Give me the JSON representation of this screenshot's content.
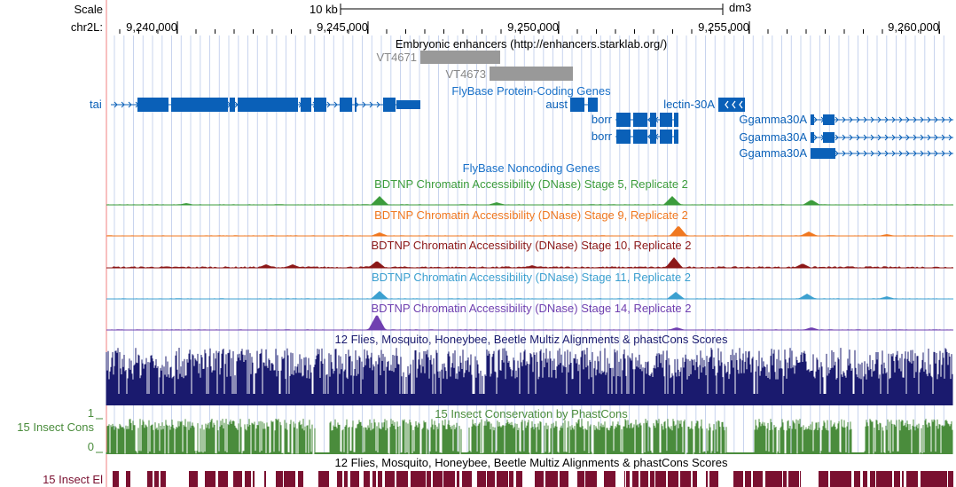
{
  "ruler": {
    "scale_label": "Scale",
    "scale_bar_label": "10 kb",
    "assembly": "dm3",
    "chrom_label": "chr2L:",
    "ticks": [
      "9,240,000",
      "9,245,000",
      "9,250,000",
      "9,255,000",
      "9,260,000"
    ]
  },
  "tracks": {
    "enhancers": {
      "title": "Embryonic enhancers (http://enhancers.starklab.org/)",
      "items": [
        "VT4671",
        "VT4673"
      ]
    },
    "coding": {
      "title": "FlyBase Protein-Coding Genes",
      "genes": [
        "tai",
        "aust",
        "lectin-30A",
        "borr",
        "borr",
        "Ggamma30A",
        "Ggamma30A",
        "Ggamma30A"
      ]
    },
    "noncoding": {
      "title": "FlyBase Noncoding Genes"
    },
    "dnase": [
      {
        "title": "BDTNP Chromatin Accessibility (DNase) Stage 5, Replicate 2",
        "color": "#3c9c3c"
      },
      {
        "title": "BDTNP Chromatin Accessibility (DNase) Stage 9, Replicate 2",
        "color": "#f07820"
      },
      {
        "title": "BDTNP Chromatin Accessibility (DNase) Stage 10, Replicate 2",
        "color": "#8c1818"
      },
      {
        "title": "BDTNP Chromatin Accessibility (DNase) Stage 11, Replicate 2",
        "color": "#3ca0d0"
      },
      {
        "title": "BDTNP Chromatin Accessibility (DNase) Stage 14, Replicate 2",
        "color": "#7040b0"
      }
    ],
    "multiz": {
      "title": "12 Flies, Mosquito, Honeybee, Beetle Multiz Alignments & phastCons Scores",
      "color": "#1a1a6e"
    },
    "cons": {
      "title": "15 Insect Conservation by PhastCons",
      "side_label": "15 Insect Cons",
      "y_max": "1",
      "y_min": "0",
      "color": "#4a8c3c"
    },
    "elements": {
      "title": "12 Flies, Mosquito, Honeybee, Beetle Multiz Alignments & phastCons Scores",
      "side_label": "15 Insect El",
      "color": "#7a1030"
    }
  },
  "colors": {
    "gene": "#0a60b8",
    "enhancer": "#999999",
    "grid": "#c8d4ee",
    "left_margin_line": "#f08080"
  }
}
